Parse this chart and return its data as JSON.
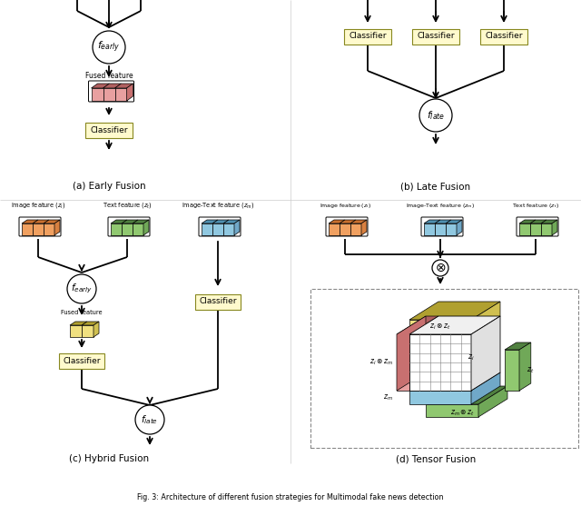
{
  "fig_width": 6.4,
  "fig_height": 5.57,
  "dpi": 100,
  "background": "#ffffff",
  "caption": "Fig. 3: Architecture of different fusion strategies for Multimodal fake news detection",
  "subfig_labels": [
    "(a) Early Fusion",
    "(b) Late Fusion",
    "(c) Hybrid Fusion",
    "(d) Tensor Fusion"
  ],
  "colors": {
    "orange_face": "#F0A060",
    "orange_top": "#C87030",
    "orange_side": "#D88040",
    "pink_face": "#E8A0A0",
    "pink_top": "#B06060",
    "pink_side": "#C87070",
    "blue_face": "#90C8E0",
    "blue_top": "#5090B0",
    "blue_side": "#70A8C8",
    "green_face": "#90C870",
    "green_top": "#508040",
    "green_side": "#70A858",
    "yellow_face": "#F0E080",
    "yellow_top": "#B0A030",
    "yellow_side": "#D0C050",
    "classifier_face": "#FFFACD",
    "classifier_edge": "#888820"
  }
}
